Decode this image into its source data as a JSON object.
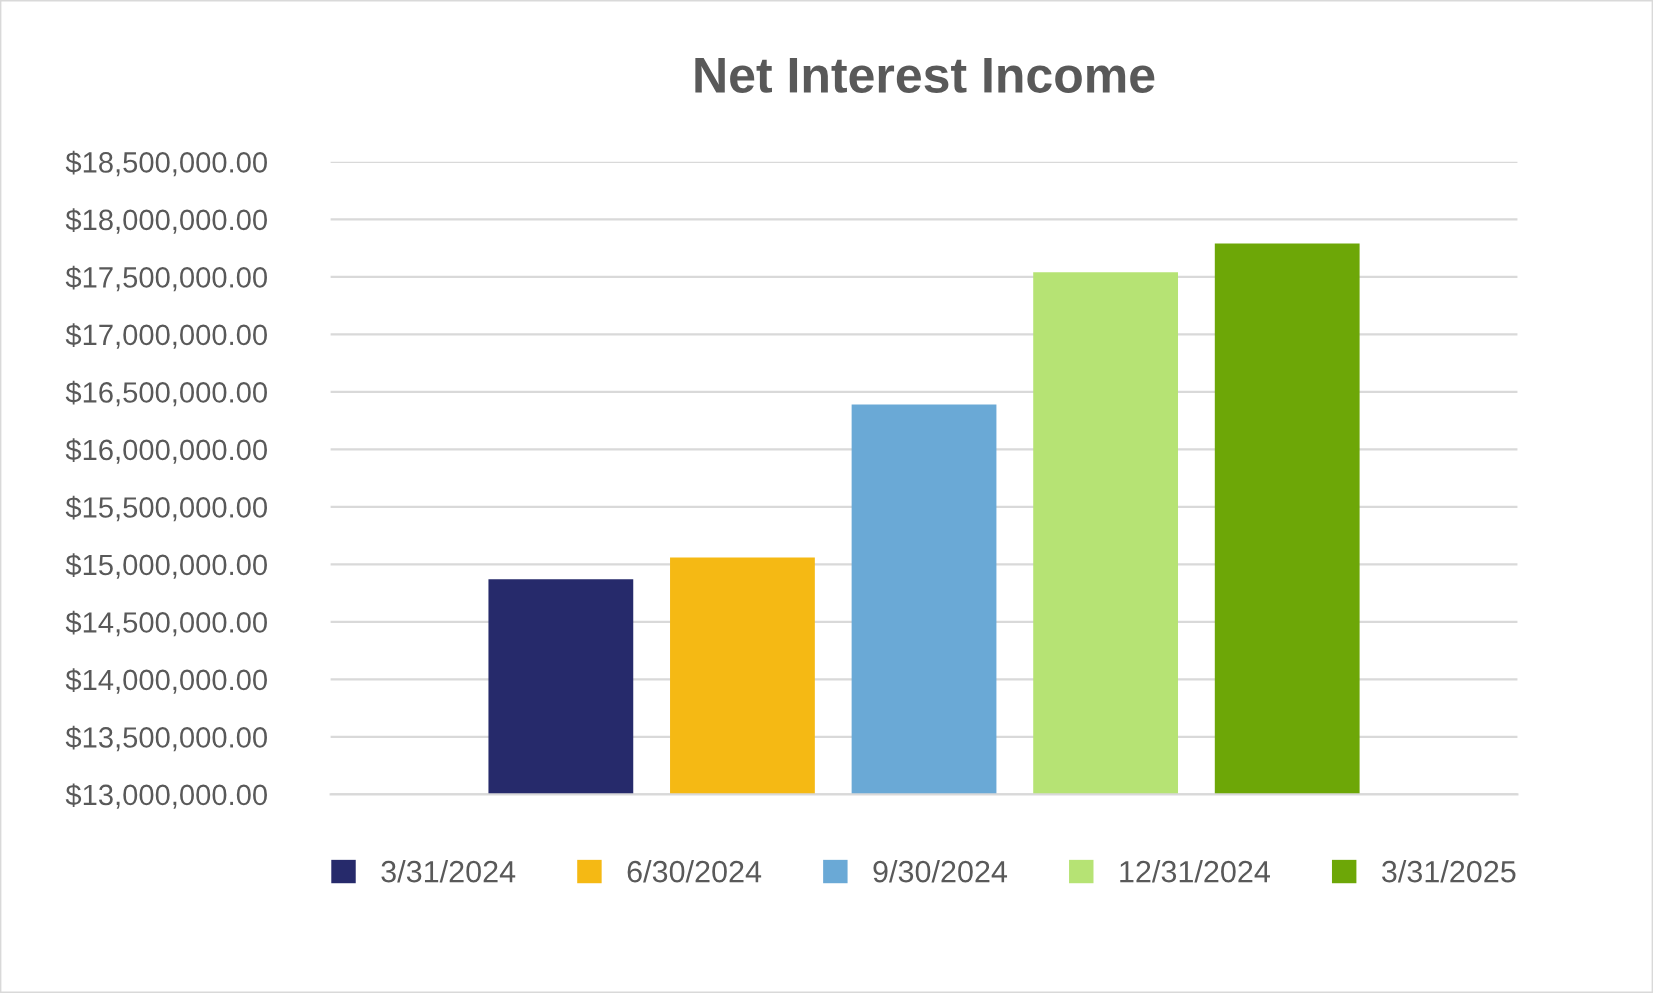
{
  "chart_data": {
    "type": "bar",
    "title": "Net Interest Income",
    "categories": [
      null
    ],
    "series": [
      {
        "name": "3/31/2024",
        "color": "#262a6b",
        "values": [
          14870000
        ]
      },
      {
        "name": "6/30/2024",
        "color": "#f5b914",
        "values": [
          15060000
        ]
      },
      {
        "name": "9/30/2024",
        "color": "#6aa9d6",
        "values": [
          16390000
        ]
      },
      {
        "name": "12/31/2024",
        "color": "#b6e374",
        "values": [
          17540000
        ]
      },
      {
        "name": "3/31/2025",
        "color": "#6da707",
        "values": [
          17790000
        ]
      }
    ],
    "ylim": [
      13000000,
      18500000
    ],
    "yticks": [
      {
        "value": 13000000,
        "label": "$13,000,000.00"
      },
      {
        "value": 13500000,
        "label": "$13,500,000.00"
      },
      {
        "value": 14000000,
        "label": "$14,000,000.00"
      },
      {
        "value": 14500000,
        "label": "$14,500,000.00"
      },
      {
        "value": 15000000,
        "label": "$15,000,000.00"
      },
      {
        "value": 15500000,
        "label": "$15,500,000.00"
      },
      {
        "value": 16000000,
        "label": "$16,000,000.00"
      },
      {
        "value": 16500000,
        "label": "$16,500,000.00"
      },
      {
        "value": 17000000,
        "label": "$17,000,000.00"
      },
      {
        "value": 17500000,
        "label": "$17,500,000.00"
      },
      {
        "value": 18000000,
        "label": "$18,000,000.00"
      },
      {
        "value": 18500000,
        "label": "$18,500,000.00"
      }
    ],
    "grid": "y",
    "legend": "bottom"
  }
}
